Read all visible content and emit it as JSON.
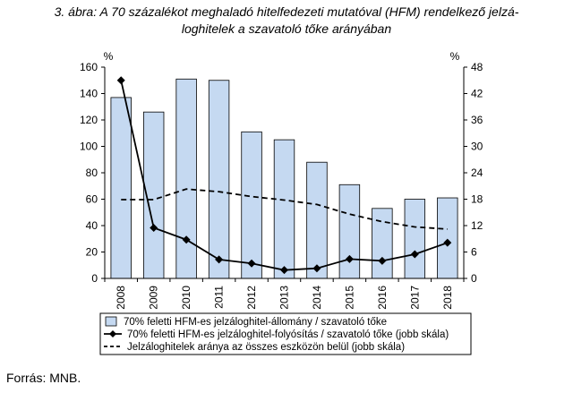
{
  "caption": {
    "line1": "3. ábra: A 70 százalékot meghaladó hitelfedezeti mutatóval (HFM) rendelkező jelzá-",
    "line2": "loghitelek a szavatoló tőke arányában"
  },
  "source": "Forrás: MNB.",
  "chart_data": {
    "type": "bar",
    "categories": [
      "2008",
      "2009",
      "2010",
      "2011",
      "2012",
      "2013",
      "2014",
      "2015",
      "2016",
      "2017",
      "2018"
    ],
    "y_left": {
      "unit": "%",
      "ylim": [
        0,
        160
      ],
      "ticks": [
        "0",
        "20",
        "40",
        "60",
        "80",
        "100",
        "120",
        "140",
        "160"
      ]
    },
    "y_right": {
      "unit": "%",
      "ylim": [
        0,
        48
      ],
      "ticks": [
        "0",
        "6",
        "12",
        "18",
        "24",
        "30",
        "36",
        "42",
        "48"
      ]
    },
    "grid": false,
    "legend_position": "bottom",
    "series": [
      {
        "name": "70% feletti HFM-es jelzáloghitel-állomány / szavatoló tőke",
        "type": "bar",
        "axis": "left",
        "color": "#c5d9f1",
        "values": [
          137,
          126,
          151,
          150,
          111,
          105,
          88,
          71,
          53,
          60,
          61
        ]
      },
      {
        "name": "70% feletti HFM-es jelzáloghitel-folyósítás / szavatoló tőke (jobb skála)",
        "type": "line-marker",
        "axis": "right",
        "color": "#000000",
        "values": [
          45.0,
          11.5,
          8.8,
          4.3,
          3.4,
          1.9,
          2.3,
          4.4,
          4.0,
          5.5,
          8.1
        ]
      },
      {
        "name": "Jelzáloghitelek aránya az összes eszközön belül (jobb skála)",
        "type": "dashed-line",
        "axis": "right",
        "color": "#000000",
        "values": [
          17.9,
          17.9,
          20.3,
          19.7,
          18.6,
          17.8,
          16.8,
          14.6,
          12.9,
          11.7,
          11.2
        ]
      }
    ]
  }
}
